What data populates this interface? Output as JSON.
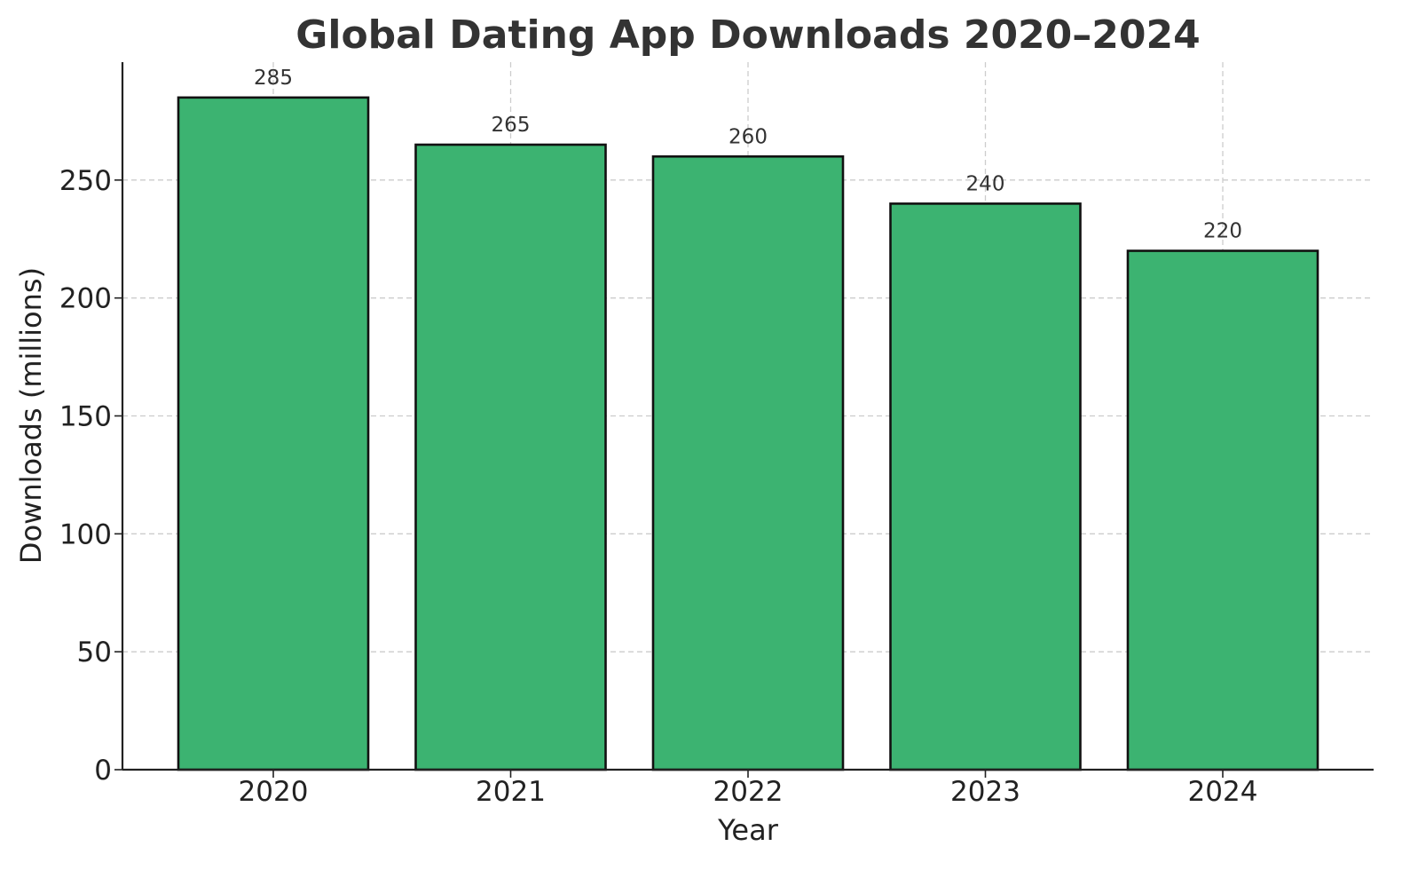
{
  "chart_data": {
    "type": "bar",
    "title": "Global Dating App Downloads 2020–2024",
    "xlabel": "Year",
    "ylabel": "Downloads (millions)",
    "categories": [
      "2020",
      "2021",
      "2022",
      "2023",
      "2024"
    ],
    "values": [
      285,
      265,
      260,
      240,
      220
    ],
    "data_labels": [
      "285",
      "265",
      "260",
      "240",
      "220"
    ],
    "ylim": [
      0,
      300
    ],
    "yticks": [
      0,
      50,
      100,
      150,
      200,
      250
    ],
    "ytick_labels": [
      "0",
      "50",
      "100",
      "150",
      "200",
      "250"
    ],
    "grid": true,
    "bar_color": "#3cb371",
    "bar_edge_color": "#111111"
  }
}
